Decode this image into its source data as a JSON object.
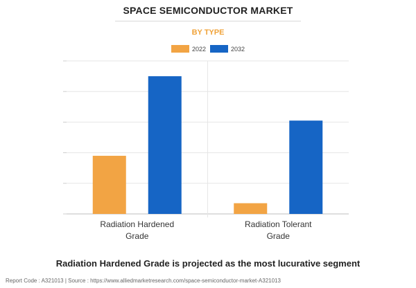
{
  "header": {
    "title": "SPACE SEMICONDUCTOR MARKET",
    "subtitle": "BY TYPE"
  },
  "colors": {
    "series_2022": "#f2a444",
    "series_2032": "#1665c5",
    "subtitle": "#f0a33a",
    "grid": "#e6e6e6"
  },
  "chart_data": {
    "type": "bar",
    "categories": [
      [
        "Radiation Hardened",
        "Grade"
      ],
      [
        "Radiation Tolerant",
        "Grade"
      ]
    ],
    "series": [
      {
        "name": "2022",
        "color": "#f2a444",
        "values": [
          1.9,
          0.35
        ]
      },
      {
        "name": "2032",
        "color": "#1665c5",
        "values": [
          4.5,
          3.05
        ]
      }
    ],
    "ylim": [
      0,
      5
    ],
    "grid": true,
    "legend_position": "top-center",
    "yaxis_tick_labels_visible": false
  },
  "headline": "Radiation Hardened Grade is projected as the most lucurative segment",
  "footer": "Report Code : A321013  |  Source : https://www.alliedmarketresearch.com/space-semiconductor-market-A321013"
}
